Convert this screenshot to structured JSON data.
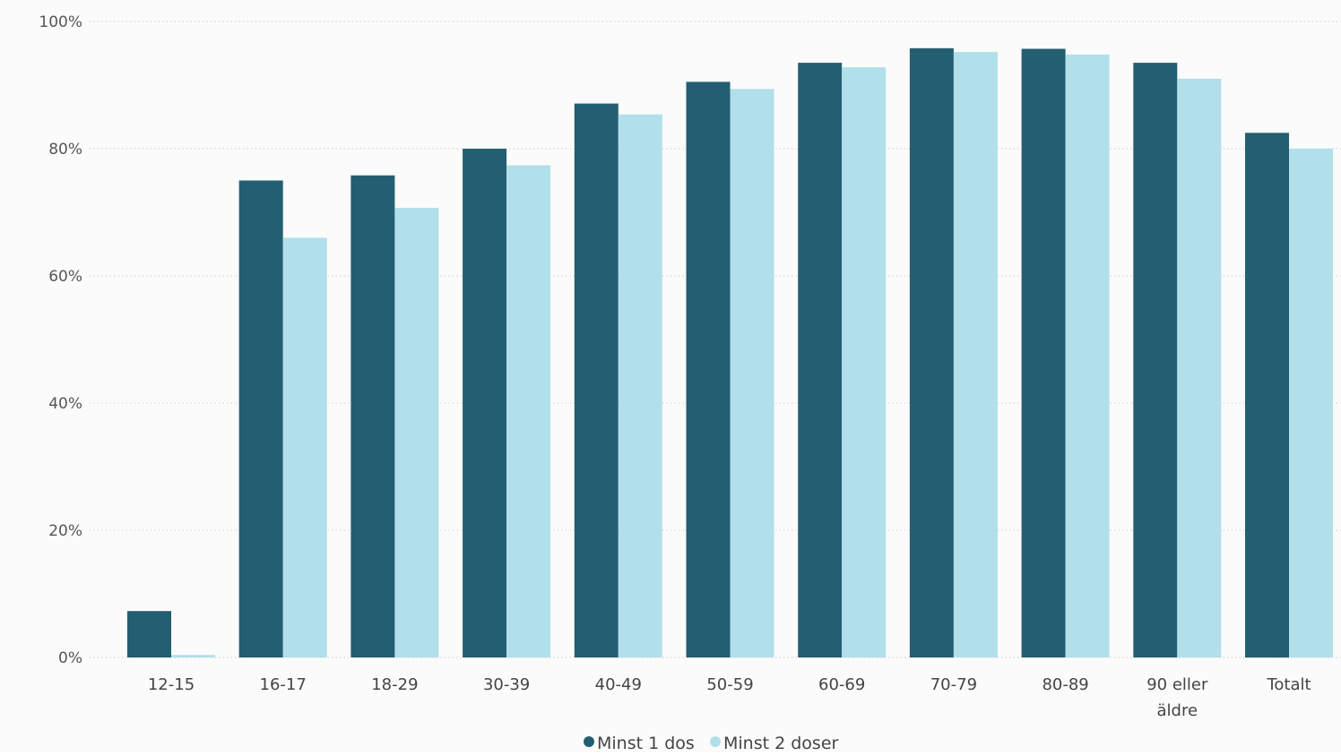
{
  "chart_data": {
    "type": "bar",
    "categories": [
      "12-15",
      "16-17",
      "18-29",
      "30-39",
      "40-49",
      "50-59",
      "60-69",
      "70-79",
      "80-89",
      "90 eller äldre",
      "Totalt"
    ],
    "category_lines": [
      [
        "12-15"
      ],
      [
        "16-17"
      ],
      [
        "18-29"
      ],
      [
        "30-39"
      ],
      [
        "40-49"
      ],
      [
        "50-59"
      ],
      [
        "60-69"
      ],
      [
        "70-79"
      ],
      [
        "80-89"
      ],
      [
        "90 eller",
        "äldre"
      ],
      [
        "Totalt"
      ]
    ],
    "series": [
      {
        "name": "Minst 1 dos",
        "color": "#235f70",
        "values": [
          7.3,
          75.0,
          75.8,
          80.0,
          87.1,
          90.5,
          93.5,
          95.8,
          95.7,
          93.5,
          82.5
        ]
      },
      {
        "name": "Minst 2 doser",
        "color": "#b1dfea",
        "values": [
          0.4,
          66.0,
          70.7,
          77.4,
          85.4,
          89.4,
          92.8,
          95.2,
          94.8,
          91.0,
          80.0
        ]
      }
    ],
    "ylim": [
      0,
      100
    ],
    "yticks": [
      0,
      20,
      40,
      60,
      80,
      100
    ],
    "ytick_labels": [
      "0%",
      "20%",
      "40%",
      "60%",
      "80%",
      "100%"
    ],
    "grid": true,
    "legend_position": "bottom-center",
    "title": "",
    "xlabel": "",
    "ylabel": ""
  }
}
